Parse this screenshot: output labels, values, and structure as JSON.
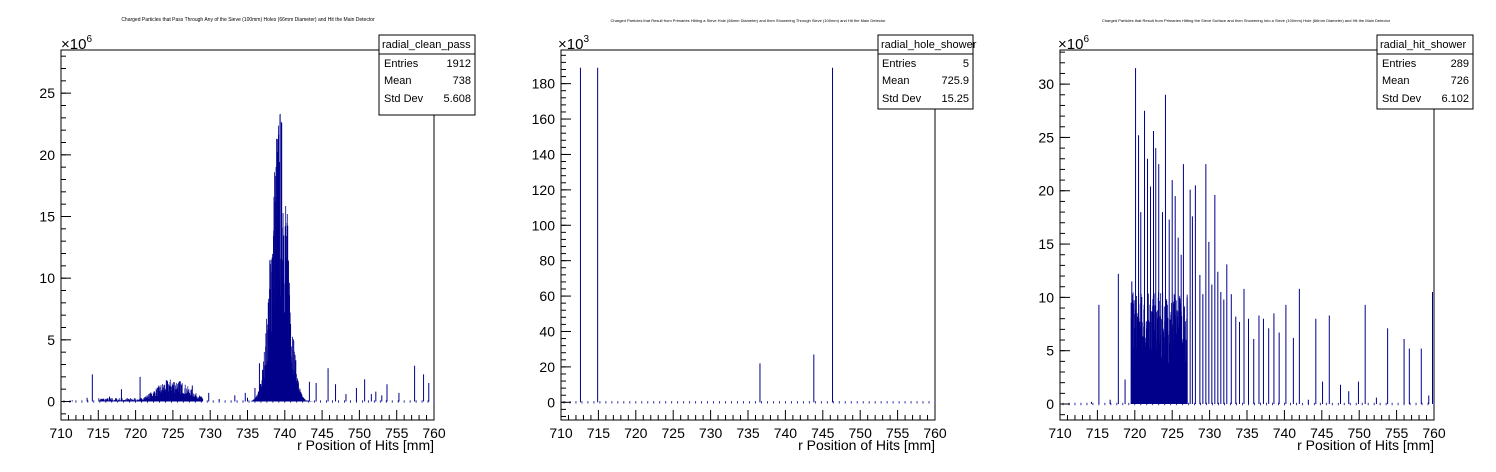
{
  "chart_data": [
    {
      "type": "histogram",
      "title": "Charged Particles that Pass Through Any of the Sieve (100mm) Holes (66mm Diameter) and Hit the Main Detector",
      "xlabel": "r Position of Hits [mm]",
      "ylabel": "",
      "xlim": [
        710,
        760
      ],
      "ylim": [
        -1.5,
        28.5
      ],
      "y_multiplier_label": "×10",
      "y_multiplier_exp": "6",
      "x_ticks": [
        "710",
        "715",
        "720",
        "725",
        "730",
        "735",
        "740",
        "745",
        "750",
        "755",
        "760"
      ],
      "x_tick_values": [
        710,
        715,
        720,
        725,
        730,
        735,
        740,
        745,
        750,
        755,
        760
      ],
      "y_ticks": [
        "0",
        "5",
        "10",
        "15",
        "20",
        "25"
      ],
      "y_tick_values": [
        0,
        5,
        10,
        15,
        20,
        25
      ],
      "stats": {
        "name": "radial_clean_pass",
        "rows": [
          [
            "Entries",
            "1912"
          ],
          [
            "Mean",
            "738"
          ],
          [
            "Std Dev",
            "5.608"
          ]
        ]
      },
      "features": [
        {
          "kind": "band",
          "from": 715,
          "to": 720,
          "low": 0,
          "high": 0.3
        },
        {
          "kind": "bump",
          "from": 720,
          "to": 729,
          "center": 725,
          "peak": 1.7,
          "width": 2.2
        },
        {
          "kind": "peak",
          "from": 735.5,
          "to": 745,
          "center": 739.3,
          "peak": 21,
          "width": 1.1
        },
        {
          "kind": "spikes",
          "x": [
            711.5,
            713.5,
            714.2,
            716.5,
            718.1,
            720.6,
            722.4,
            725.7,
            727.6,
            729.8,
            731.2,
            733.3,
            734.7,
            735.0,
            736.0,
            736.6,
            743.3,
            744.2,
            745.8,
            746.8,
            748.2,
            749.6,
            750.7,
            751.6,
            752.2,
            753.0,
            753.7,
            755.3,
            757.4,
            758.6,
            759.3
          ],
          "y": [
            0.1,
            0.3,
            2.2,
            0.4,
            1.0,
            2.0,
            0.5,
            0.8,
            1.3,
            0.7,
            0.2,
            0.5,
            0.7,
            0.3,
            1.1,
            3.1,
            1.6,
            1.5,
            2.7,
            1.4,
            0.6,
            1.1,
            1.8,
            0.6,
            0.8,
            0.5,
            1.4,
            0.7,
            2.9,
            2.2,
            1.5
          ]
        }
      ]
    },
    {
      "type": "histogram",
      "title": "Charged Particles that Result from Primaries Hitting a Sieve Hole (66mm Diameter) and then Showering Through Sieve (100mm) and Hit the Main Detector",
      "xlabel": "r Position of Hits [mm]",
      "ylabel": "",
      "xlim": [
        710,
        760
      ],
      "ylim": [
        -10,
        199
      ],
      "y_multiplier_label": "×10",
      "y_multiplier_exp": "3",
      "x_ticks": [
        "710",
        "715",
        "720",
        "725",
        "730",
        "735",
        "740",
        "745",
        "750",
        "755",
        "760"
      ],
      "x_tick_values": [
        710,
        715,
        720,
        725,
        730,
        735,
        740,
        745,
        750,
        755,
        760
      ],
      "y_ticks": [
        "0",
        "20",
        "40",
        "60",
        "80",
        "100",
        "120",
        "140",
        "160",
        "180"
      ],
      "y_tick_values": [
        0,
        20,
        40,
        60,
        80,
        100,
        120,
        140,
        160,
        180
      ],
      "stats": {
        "name": "radial_hole_shower",
        "rows": [
          [
            "Entries",
            "5"
          ],
          [
            "Mean",
            "725.9"
          ],
          [
            "Std Dev",
            "15.25"
          ]
        ]
      },
      "features": [
        {
          "kind": "spikes",
          "x": [
            712.6,
            714.9,
            736.6,
            743.8,
            746.3
          ],
          "y": [
            189,
            189,
            22,
            27,
            189
          ]
        }
      ]
    },
    {
      "type": "histogram",
      "title": "Charged Particles that Result from Primaries Hitting the Sieve Surface and then Showering Into a Sieve (100mm) Hole (66mm Diameter) and Hit the Main Detector",
      "xlabel": "r Position of Hits [mm]",
      "ylabel": "",
      "xlim": [
        710,
        760
      ],
      "ylim": [
        -1.5,
        33.2
      ],
      "y_multiplier_label": "×10",
      "y_multiplier_exp": "6",
      "x_ticks": [
        "710",
        "715",
        "720",
        "725",
        "730",
        "735",
        "740",
        "745",
        "750",
        "755",
        "760"
      ],
      "x_tick_values": [
        710,
        715,
        720,
        725,
        730,
        735,
        740,
        745,
        750,
        755,
        760
      ],
      "y_ticks": [
        "0",
        "5",
        "10",
        "15",
        "20",
        "25",
        "30"
      ],
      "y_tick_values": [
        0,
        5,
        10,
        15,
        20,
        25,
        30
      ],
      "stats": {
        "name": "radial_hit_shower",
        "rows": [
          [
            "Entries",
            "289"
          ],
          [
            "Mean",
            "726"
          ],
          [
            "Std Dev",
            "6.102"
          ]
        ]
      },
      "features": [
        {
          "kind": "dense",
          "from": 719.5,
          "to": 727,
          "low": 3,
          "high": 10.5
        },
        {
          "kind": "spikes",
          "x": [
            714.2,
            715.2,
            716.7,
            717.8,
            718.7,
            719.6,
            720.1,
            720.5,
            720.8,
            721.3,
            721.7,
            722.1,
            722.5,
            722.8,
            723.2,
            723.7,
            724.1,
            724.6,
            725.0,
            725.4,
            725.8,
            726.2,
            726.5,
            727.0,
            727.4,
            727.7,
            728.1,
            728.7,
            729.1,
            729.5,
            729.9,
            730.3,
            730.7,
            731.1,
            731.5,
            731.9,
            732.3,
            732.9,
            733.5,
            734.0,
            734.6,
            735.2,
            735.9,
            736.6,
            737.2,
            737.9,
            738.6,
            739.3,
            740.2,
            741.2,
            742.0,
            743.2,
            744.2,
            745.1,
            746.0,
            747.5,
            748.6,
            749.9,
            750.8,
            752.3,
            753.8,
            756.0,
            756.7,
            758.3,
            759.3,
            759.8
          ],
          "y": [
            0.2,
            9.3,
            0.4,
            12.2,
            2.3,
            11.5,
            31.5,
            25.2,
            18.0,
            27.5,
            23.0,
            20.4,
            25.6,
            24.0,
            22.5,
            18.0,
            29.0,
            17.3,
            21.0,
            19.5,
            15.6,
            14.0,
            22.5,
            10.0,
            20.1,
            17.6,
            20.5,
            12.1,
            10.3,
            22.5,
            15.2,
            11.2,
            19.6,
            12.4,
            10.5,
            9.8,
            13.1,
            10.3,
            8.2,
            7.7,
            10.8,
            8.0,
            6.1,
            8.3,
            8.0,
            7.1,
            8.5,
            6.7,
            9.3,
            6.2,
            10.8,
            0.4,
            8.0,
            2.1,
            8.3,
            1.8,
            1.2,
            2.1,
            9.3,
            0.6,
            7.1,
            6.1,
            5.2,
            5.2,
            0.8,
            10.5
          ]
        }
      ]
    }
  ]
}
